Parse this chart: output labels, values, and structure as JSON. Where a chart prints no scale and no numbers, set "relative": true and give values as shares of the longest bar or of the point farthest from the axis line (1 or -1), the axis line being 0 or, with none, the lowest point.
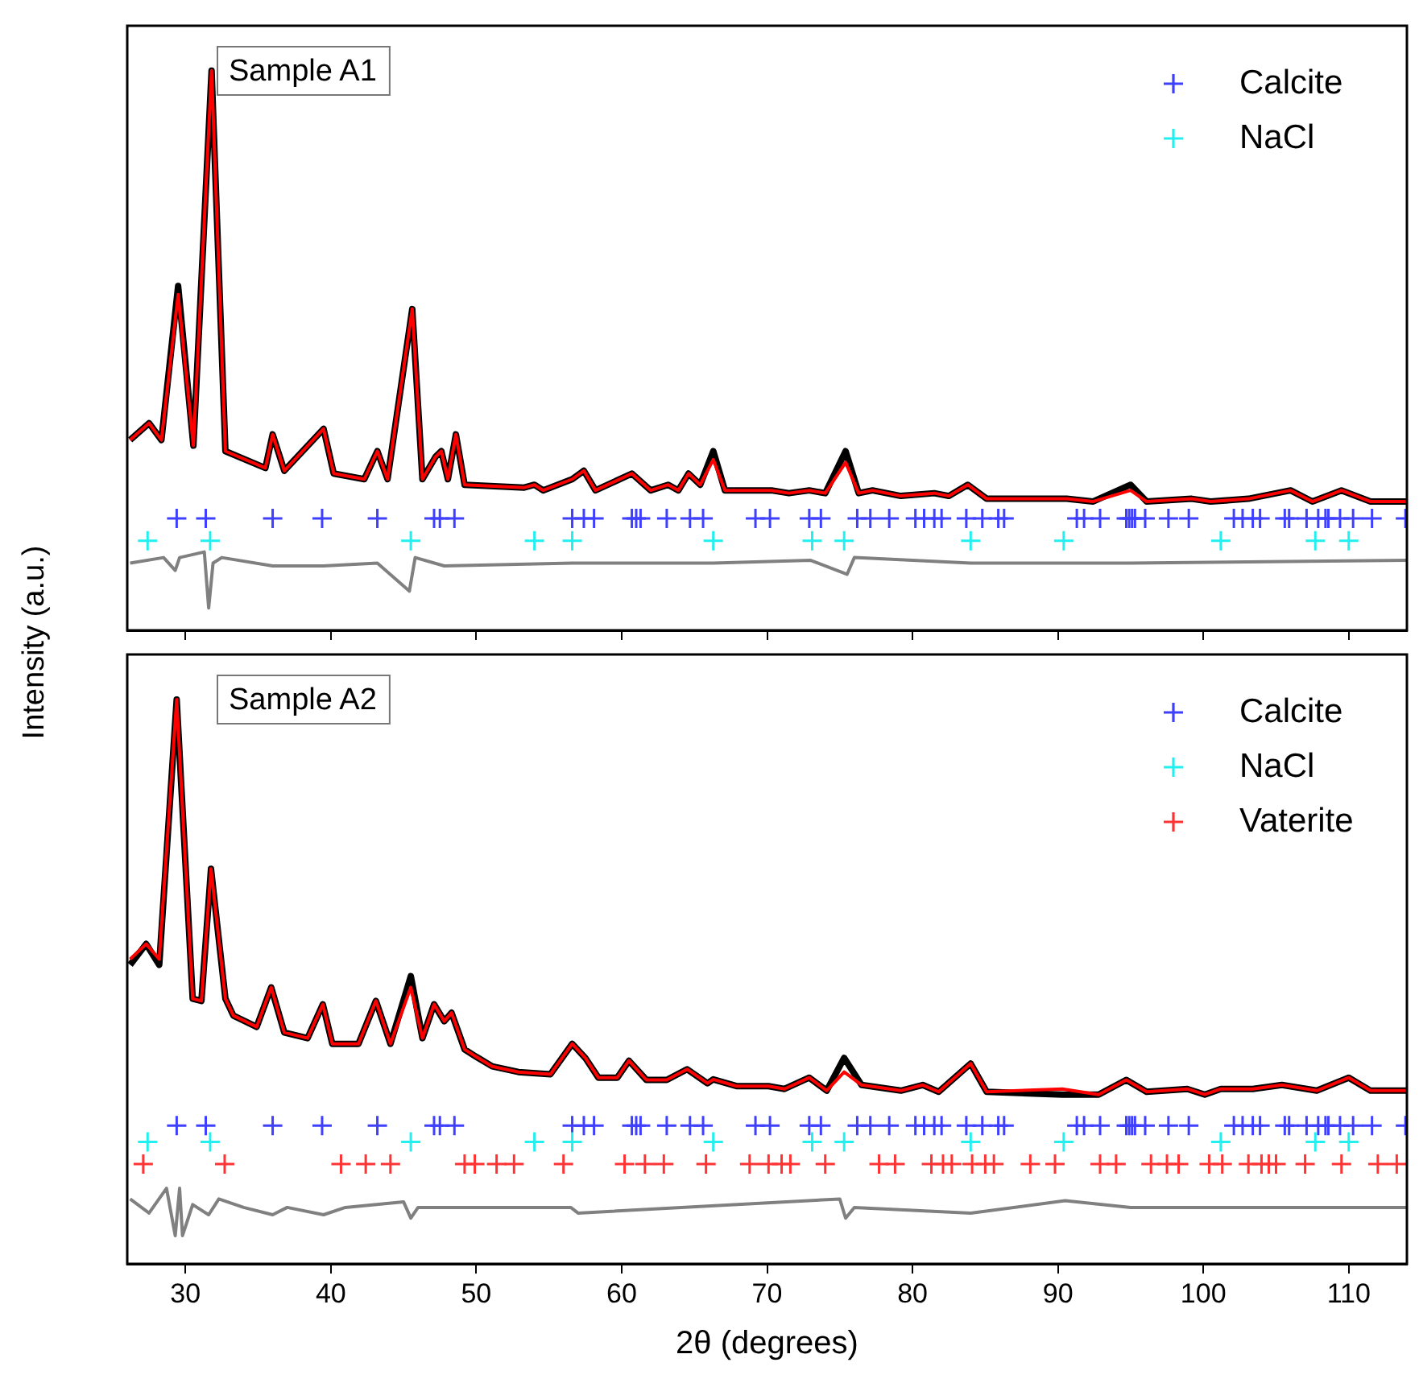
{
  "chart_data": [
    {
      "type": "line",
      "annotations": [
        "Sample A1"
      ],
      "ylabel": "Intensity (a.u.)",
      "xlim": [
        26,
        114
      ],
      "xticks": [
        30,
        40,
        50,
        60,
        70,
        80,
        90,
        100,
        110
      ],
      "relative": true,
      "tick_labels": false,
      "legend": "top right",
      "series": [
        {
          "type": "line",
          "color": "#000000",
          "marker": "none",
          "x": [
            26.2,
            27.5,
            28.35,
            29.5,
            30.55,
            31.8,
            32.75,
            35.5,
            36.0,
            36.8,
            39.5,
            40.2,
            42.3,
            43.2,
            43.9,
            45.6,
            46.3,
            47.2,
            47.6,
            48.05,
            48.6,
            49.2,
            53.3,
            54.0,
            54.6,
            56.6,
            57.4,
            58.2,
            60.7,
            62.0,
            63.2,
            63.9,
            64.6,
            65.4,
            66.3,
            67.1,
            70.3,
            71.5,
            72.9,
            74.0,
            75.4,
            76.3,
            77.25,
            79.2,
            81.5,
            82.5,
            83.8,
            85.1,
            90.6,
            92.4,
            95.0,
            96.1,
            99.2,
            100.5,
            103.1,
            106.0,
            107.5,
            109.5,
            111.5,
            114
          ],
          "values": [
            0.34,
            0.37,
            0.34,
            0.615,
            0.33,
            1.0,
            0.32,
            0.29,
            0.35,
            0.285,
            0.36,
            0.28,
            0.27,
            0.32,
            0.27,
            0.574,
            0.27,
            0.31,
            0.32,
            0.27,
            0.35,
            0.26,
            0.255,
            0.26,
            0.25,
            0.27,
            0.285,
            0.25,
            0.28,
            0.25,
            0.26,
            0.25,
            0.28,
            0.26,
            0.32,
            0.25,
            0.25,
            0.245,
            0.25,
            0.245,
            0.32,
            0.245,
            0.25,
            0.24,
            0.245,
            0.24,
            0.26,
            0.235,
            0.235,
            0.23,
            0.26,
            0.23,
            0.235,
            0.23,
            0.235,
            0.25,
            0.23,
            0.25,
            0.23,
            0.23
          ]
        },
        {
          "type": "line",
          "color": "#ff0000",
          "marker": "none",
          "x": [
            26.2,
            27.5,
            28.35,
            29.5,
            30.55,
            31.8,
            32.75,
            35.5,
            36.0,
            36.8,
            39.5,
            40.2,
            42.3,
            43.2,
            43.9,
            45.6,
            46.3,
            47.2,
            47.6,
            48.05,
            48.6,
            49.2,
            53.3,
            54.0,
            54.6,
            56.6,
            57.4,
            58.2,
            60.7,
            62.0,
            63.2,
            63.9,
            64.6,
            65.4,
            66.3,
            67.1,
            70.3,
            71.5,
            72.9,
            74.0,
            75.4,
            76.3,
            77.25,
            79.2,
            81.5,
            82.5,
            83.8,
            85.1,
            90.6,
            92.4,
            95.0,
            96.1,
            99.2,
            100.5,
            103.1,
            106.0,
            107.5,
            109.5,
            111.5,
            114
          ],
          "values": [
            0.34,
            0.37,
            0.34,
            0.6,
            0.33,
            1.0,
            0.32,
            0.29,
            0.35,
            0.285,
            0.36,
            0.28,
            0.27,
            0.32,
            0.27,
            0.574,
            0.27,
            0.31,
            0.32,
            0.27,
            0.35,
            0.26,
            0.255,
            0.26,
            0.25,
            0.27,
            0.285,
            0.25,
            0.28,
            0.25,
            0.26,
            0.25,
            0.28,
            0.26,
            0.305,
            0.25,
            0.25,
            0.245,
            0.25,
            0.245,
            0.3,
            0.245,
            0.25,
            0.24,
            0.245,
            0.24,
            0.26,
            0.235,
            0.235,
            0.23,
            0.25,
            0.23,
            0.235,
            0.23,
            0.235,
            0.25,
            0.23,
            0.25,
            0.23,
            0.23
          ]
        },
        {
          "type": "line",
          "color": "#808080",
          "marker": "none",
          "x": [
            26.2,
            28.5,
            29.3,
            29.6,
            31.3,
            31.6,
            31.9,
            32.5,
            36.0,
            39.5,
            43.2,
            45.4,
            45.8,
            47.8,
            56.6,
            60.7,
            66.3,
            73.0,
            75.5,
            76.0,
            84.0,
            95.0,
            114
          ],
          "values": [
            0.12,
            0.13,
            0.107,
            0.13,
            0.14,
            0.04,
            0.12,
            0.13,
            0.115,
            0.115,
            0.12,
            0.07,
            0.13,
            0.115,
            0.12,
            0.12,
            0.12,
            0.125,
            0.1,
            0.13,
            0.12,
            0.12,
            0.125
          ]
        },
        {
          "name": "Calcite",
          "type": "scatter",
          "marker": "cross",
          "color": "#3f3fff",
          "x": [
            29.4,
            31.4,
            36.0,
            39.4,
            43.2,
            47.1,
            47.5,
            48.5,
            56.6,
            57.4,
            58.1,
            60.7,
            61.0,
            61.3,
            63.1,
            64.7,
            65.6,
            69.2,
            70.2,
            72.9,
            73.7,
            76.2,
            77.1,
            78.4,
            80.2,
            80.8,
            81.5,
            82.0,
            83.7,
            84.8,
            85.9,
            86.3,
            91.3,
            91.8,
            92.9,
            94.7,
            94.9,
            95.1,
            95.3,
            96.0,
            97.6,
            99.0,
            102.1,
            102.7,
            103.4,
            103.9,
            105.6,
            105.9,
            107.1,
            107.9,
            108.4,
            108.6,
            109.4,
            110.3,
            111.6,
            113.9
          ],
          "values": [
            0.2,
            0.2,
            0.2,
            0.2,
            0.2,
            0.2,
            0.2,
            0.2,
            0.2,
            0.2,
            0.2,
            0.2,
            0.2,
            0.2,
            0.2,
            0.2,
            0.2,
            0.2,
            0.2,
            0.2,
            0.2,
            0.2,
            0.2,
            0.2,
            0.2,
            0.2,
            0.2,
            0.2,
            0.2,
            0.2,
            0.2,
            0.2,
            0.2,
            0.2,
            0.2,
            0.2,
            0.2,
            0.2,
            0.2,
            0.2,
            0.2,
            0.2,
            0.2,
            0.2,
            0.2,
            0.2,
            0.2,
            0.2,
            0.2,
            0.2,
            0.2,
            0.2,
            0.2,
            0.2,
            0.2,
            0.2
          ]
        },
        {
          "name": "NaCl",
          "type": "scatter",
          "marker": "cross",
          "color": "#22f0f0",
          "x": [
            27.4,
            31.7,
            45.5,
            54.0,
            56.6,
            66.3,
            73.1,
            75.3,
            84.0,
            90.4,
            101.2,
            107.7,
            110.0
          ],
          "values": [
            0.16,
            0.16,
            0.16,
            0.16,
            0.16,
            0.16,
            0.16,
            0.16,
            0.16,
            0.16,
            0.16,
            0.16,
            0.16
          ]
        }
      ]
    },
    {
      "type": "line",
      "annotations": [
        "Sample A2"
      ],
      "xlabel": "2θ (degrees)",
      "xlim": [
        26,
        114
      ],
      "xticks": [
        30,
        40,
        50,
        60,
        70,
        80,
        90,
        100,
        110
      ],
      "relative": true,
      "tick_labels": "x",
      "legend": "top right",
      "series": [
        {
          "type": "line",
          "color": "#000000",
          "marker": "none",
          "x": [
            26.2,
            27.3,
            28.2,
            29.4,
            30.5,
            31.1,
            31.76,
            32.75,
            33.3,
            34.9,
            35.9,
            36.8,
            38.4,
            39.45,
            40.1,
            41.9,
            43.1,
            44.1,
            45.5,
            46.3,
            47.1,
            47.8,
            48.3,
            49.2,
            50.0,
            51.1,
            52.9,
            55.1,
            56.6,
            57.5,
            58.4,
            59.7,
            60.5,
            61.7,
            63.1,
            64.5,
            65.9,
            66.3,
            67.9,
            70.1,
            71.2,
            72.9,
            74.1,
            75.3,
            76.5,
            79.2,
            80.7,
            81.8,
            84.0,
            85.1,
            90.3,
            92.8,
            94.7,
            96.1,
            98.9,
            100.1,
            101.2,
            103.4,
            105.4,
            107.8,
            110.0,
            111.5,
            114
          ],
          "values": [
            0.53,
            0.567,
            0.53,
            1.0,
            0.47,
            0.466,
            0.7,
            0.47,
            0.44,
            0.42,
            0.49,
            0.41,
            0.4,
            0.46,
            0.39,
            0.39,
            0.466,
            0.39,
            0.51,
            0.4,
            0.46,
            0.43,
            0.445,
            0.38,
            0.367,
            0.35,
            0.34,
            0.336,
            0.39,
            0.365,
            0.33,
            0.33,
            0.36,
            0.326,
            0.326,
            0.345,
            0.32,
            0.327,
            0.315,
            0.315,
            0.31,
            0.33,
            0.307,
            0.365,
            0.317,
            0.307,
            0.317,
            0.305,
            0.355,
            0.305,
            0.3,
            0.3,
            0.326,
            0.305,
            0.31,
            0.3,
            0.31,
            0.31,
            0.317,
            0.307,
            0.33,
            0.307,
            0.307
          ]
        },
        {
          "type": "line",
          "color": "#ff0000",
          "marker": "none",
          "x": [
            26.2,
            27.3,
            28.2,
            29.4,
            30.5,
            31.1,
            31.76,
            32.75,
            33.3,
            34.9,
            35.9,
            36.8,
            38.4,
            39.45,
            40.1,
            41.9,
            43.1,
            44.1,
            45.5,
            46.3,
            47.1,
            47.8,
            48.3,
            49.2,
            50.0,
            51.1,
            52.9,
            55.1,
            56.6,
            57.5,
            58.4,
            59.7,
            60.5,
            61.7,
            63.1,
            64.5,
            65.9,
            66.3,
            67.9,
            70.1,
            71.2,
            72.9,
            74.1,
            75.3,
            76.5,
            79.2,
            80.7,
            81.8,
            84.0,
            85.1,
            90.3,
            92.8,
            94.7,
            96.1,
            98.9,
            100.1,
            101.2,
            103.4,
            105.4,
            107.8,
            110.0,
            111.5,
            114
          ],
          "values": [
            0.54,
            0.567,
            0.54,
            1.0,
            0.47,
            0.466,
            0.7,
            0.47,
            0.44,
            0.42,
            0.49,
            0.41,
            0.4,
            0.46,
            0.39,
            0.39,
            0.466,
            0.39,
            0.49,
            0.4,
            0.46,
            0.43,
            0.445,
            0.38,
            0.367,
            0.35,
            0.34,
            0.336,
            0.39,
            0.365,
            0.33,
            0.33,
            0.36,
            0.326,
            0.326,
            0.345,
            0.32,
            0.327,
            0.315,
            0.315,
            0.31,
            0.33,
            0.307,
            0.34,
            0.317,
            0.307,
            0.317,
            0.305,
            0.355,
            0.305,
            0.31,
            0.3,
            0.326,
            0.305,
            0.31,
            0.3,
            0.31,
            0.31,
            0.317,
            0.307,
            0.33,
            0.307,
            0.307
          ]
        },
        {
          "type": "line",
          "color": "#808080",
          "marker": "none",
          "x": [
            26.2,
            27.5,
            28.7,
            29.3,
            29.6,
            29.8,
            30.5,
            31.6,
            32.3,
            34,
            36.0,
            37,
            39.5,
            41,
            45.0,
            45.5,
            46,
            56.5,
            57,
            75.0,
            75.4,
            76,
            84.0,
            90.5,
            95,
            114
          ],
          "values": [
            0.115,
            0.09,
            0.134,
            0.05,
            0.134,
            0.05,
            0.105,
            0.087,
            0.115,
            0.1,
            0.087,
            0.1,
            0.087,
            0.1,
            0.11,
            0.081,
            0.1,
            0.1,
            0.09,
            0.115,
            0.081,
            0.1,
            0.09,
            0.112,
            0.1,
            0.1
          ]
        },
        {
          "name": "Calcite",
          "type": "scatter",
          "marker": "cross",
          "color": "#3f3fff",
          "x": [
            29.4,
            31.4,
            36.0,
            39.4,
            43.2,
            47.1,
            47.5,
            48.5,
            56.6,
            57.4,
            58.1,
            60.7,
            61.0,
            61.3,
            63.1,
            64.7,
            65.6,
            69.2,
            70.2,
            72.9,
            73.7,
            76.2,
            77.1,
            78.4,
            80.2,
            80.8,
            81.5,
            82.0,
            83.7,
            84.8,
            85.9,
            86.3,
            91.3,
            91.8,
            92.9,
            94.7,
            94.9,
            95.1,
            95.3,
            96.0,
            97.6,
            99.0,
            102.1,
            102.7,
            103.4,
            103.9,
            105.6,
            105.9,
            107.1,
            107.9,
            108.4,
            108.6,
            109.4,
            110.3,
            111.6,
            113.9
          ],
          "values": [
            0.245,
            0.245,
            0.245,
            0.245,
            0.245,
            0.245,
            0.245,
            0.245,
            0.245,
            0.245,
            0.245,
            0.245,
            0.245,
            0.245,
            0.245,
            0.245,
            0.245,
            0.245,
            0.245,
            0.245,
            0.245,
            0.245,
            0.245,
            0.245,
            0.245,
            0.245,
            0.245,
            0.245,
            0.245,
            0.245,
            0.245,
            0.245,
            0.245,
            0.245,
            0.245,
            0.245,
            0.245,
            0.245,
            0.245,
            0.245,
            0.245,
            0.245,
            0.245,
            0.245,
            0.245,
            0.245,
            0.245,
            0.245,
            0.245,
            0.245,
            0.245,
            0.245,
            0.245,
            0.245,
            0.245,
            0.245
          ]
        },
        {
          "name": "NaCl",
          "type": "scatter",
          "marker": "cross",
          "color": "#22f0f0",
          "x": [
            27.4,
            31.7,
            45.5,
            54.0,
            56.6,
            66.3,
            73.1,
            75.3,
            84.0,
            90.4,
            101.2,
            107.7,
            110.0
          ],
          "values": [
            0.216,
            0.216,
            0.216,
            0.216,
            0.216,
            0.216,
            0.216,
            0.216,
            0.216,
            0.216,
            0.216,
            0.216,
            0.216
          ]
        },
        {
          "name": "Vaterite",
          "type": "scatter",
          "marker": "cross",
          "color": "#ff3333",
          "x": [
            27.1,
            32.7,
            40.7,
            42.4,
            44.1,
            49.2,
            49.9,
            51.4,
            52.6,
            56.0,
            60.2,
            61.6,
            62.9,
            65.8,
            68.8,
            70.1,
            71.0,
            71.6,
            74.0,
            77.7,
            78.8,
            81.3,
            82.1,
            82.7,
            84.1,
            85.0,
            85.6,
            88.1,
            89.8,
            92.9,
            94.0,
            96.4,
            97.5,
            98.3,
            100.4,
            101.3,
            103.1,
            104.0,
            104.5,
            105.0,
            107.0,
            109.5,
            112.0,
            113.3
          ],
          "values": [
            0.177,
            0.177,
            0.177,
            0.177,
            0.177,
            0.177,
            0.177,
            0.177,
            0.177,
            0.177,
            0.177,
            0.177,
            0.177,
            0.177,
            0.177,
            0.177,
            0.177,
            0.177,
            0.177,
            0.177,
            0.177,
            0.177,
            0.177,
            0.177,
            0.177,
            0.177,
            0.177,
            0.177,
            0.177,
            0.177,
            0.177,
            0.177,
            0.177,
            0.177,
            0.177,
            0.177,
            0.177,
            0.177,
            0.177,
            0.177,
            0.177,
            0.177,
            0.177,
            0.177
          ]
        }
      ]
    }
  ]
}
